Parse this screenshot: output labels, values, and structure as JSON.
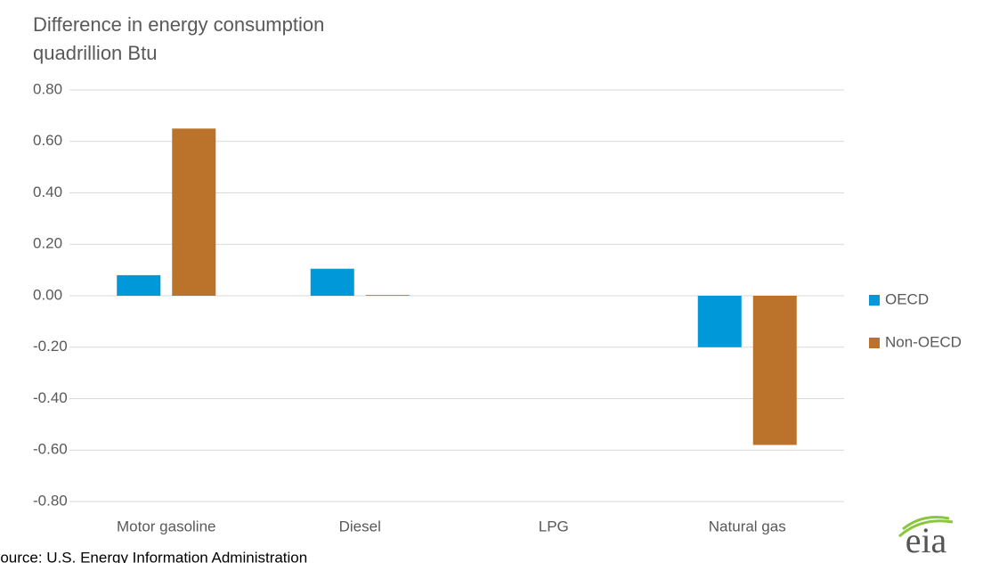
{
  "chart_data": {
    "type": "bar",
    "title": "Difference in energy consumption",
    "y_label": "quadrillion Btu",
    "source": "Source: U.S. Energy Information Administration",
    "logo": "eia",
    "categories": [
      "Motor gasoline",
      "Diesel",
      "LPG",
      "Natural gas"
    ],
    "series": [
      {
        "name": "OECD",
        "color": "#0098d8",
        "values": [
          0.08,
          0.105,
          0,
          -0.2
        ]
      },
      {
        "name": "Non-OECD",
        "color": "#bb722b",
        "values": [
          0.65,
          0.003,
          0,
          -0.58
        ]
      }
    ],
    "ylim": [
      -0.8,
      0.8
    ],
    "yticks": [
      {
        "value": 0.8,
        "label": "0.80"
      },
      {
        "value": 0.6,
        "label": "0.60"
      },
      {
        "value": 0.4,
        "label": "0.40"
      },
      {
        "value": 0.2,
        "label": "0.20"
      },
      {
        "value": 0,
        "label": "0.00"
      },
      {
        "value": -0.2,
        "label": "-0.20"
      },
      {
        "value": -0.4,
        "label": "-0.40"
      },
      {
        "value": -0.6,
        "label": "-0.60"
      },
      {
        "value": -0.8,
        "label": "-0.80"
      }
    ],
    "grid": true,
    "legend": "right"
  }
}
